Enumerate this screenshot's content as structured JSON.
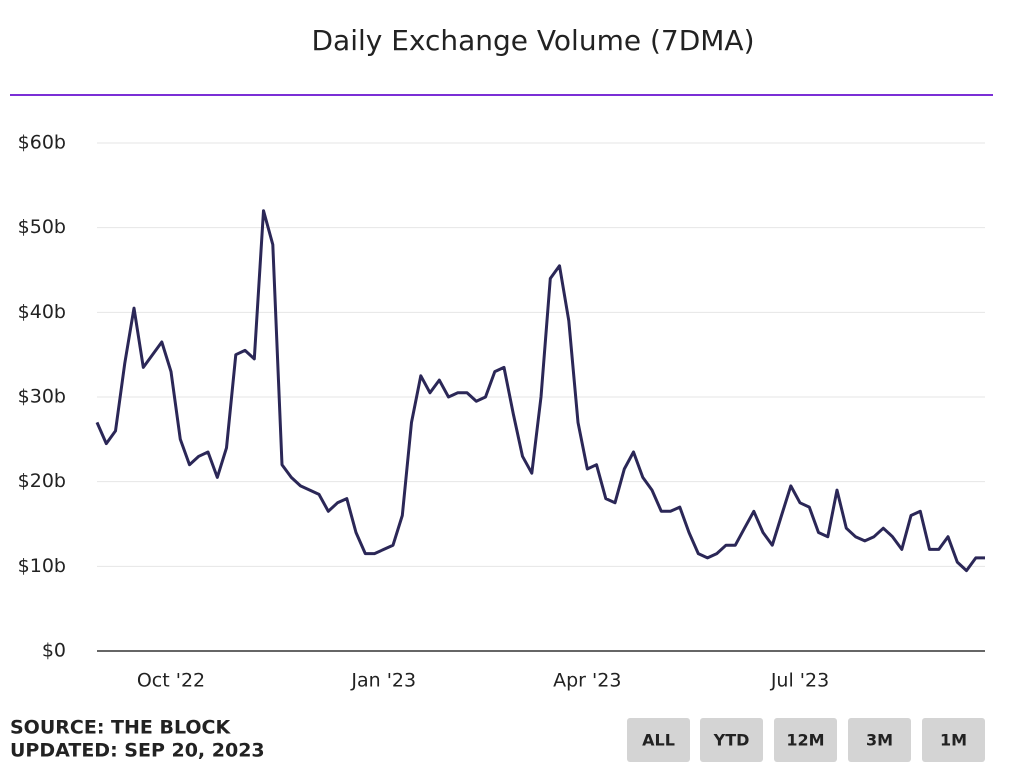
{
  "chart_data": {
    "type": "line",
    "title": "Daily Exchange Volume (7DMA)",
    "source": "SOURCE: THE BLOCK",
    "updated": "UPDATED: SEP 20, 2023",
    "buttons": [
      "ALL",
      "YTD",
      "12M",
      "3M",
      "1M"
    ],
    "categories": [
      null,
      null,
      null,
      null,
      null,
      null,
      null,
      null,
      "Oct '22",
      null,
      null,
      null,
      null,
      null,
      null,
      null,
      null,
      null,
      null,
      null,
      null,
      null,
      null,
      null,
      null,
      null,
      null,
      null,
      null,
      null,
      null,
      "Jan '23",
      null,
      null,
      null,
      null,
      null,
      null,
      null,
      null,
      null,
      null,
      null,
      null,
      null,
      null,
      null,
      null,
      null,
      null,
      null,
      null,
      null,
      "Apr '23",
      null,
      null,
      null,
      null,
      null,
      null,
      null,
      null,
      null,
      null,
      null,
      null,
      null,
      null,
      null,
      null,
      null,
      null,
      null,
      null,
      null,
      null,
      "Jul '23",
      null,
      null,
      null,
      null,
      null,
      null,
      null,
      null,
      null,
      null,
      null,
      null,
      null,
      null,
      null,
      null,
      null,
      null,
      null,
      null
    ],
    "series": [
      {
        "name": "Daily Exchange Volume",
        "color": "#2b2757",
        "values": [
          27,
          24.5,
          26,
          34,
          40.5,
          33.5,
          35,
          36.5,
          33,
          25,
          22,
          23,
          23.5,
          20.5,
          24,
          35,
          35.5,
          34.5,
          52,
          48,
          22,
          20.5,
          19.5,
          19,
          18.5,
          16.5,
          17.5,
          18,
          14,
          11.5,
          11.5,
          12,
          12.5,
          16,
          27,
          32.5,
          30.5,
          32,
          30,
          30.5,
          30.5,
          29.5,
          30,
          33,
          33.5,
          28,
          23,
          21,
          30,
          44,
          45.5,
          39,
          27,
          21.5,
          22,
          18,
          17.5,
          21.5,
          23.5,
          20.5,
          19,
          16.5,
          16.5,
          17,
          14,
          11.5,
          11,
          11.5,
          12.5,
          12.5,
          14.5,
          16.5,
          14,
          12.5,
          16,
          19.5,
          17.5,
          17,
          14,
          13.5,
          19,
          14.5,
          13.5,
          13,
          13.5,
          14.5,
          13.5,
          12,
          16,
          16.5,
          12,
          12,
          13.5,
          10.5,
          9.5,
          11,
          11
        ]
      }
    ],
    "ylim": [
      0,
      60
    ],
    "yticks": [
      {
        "value": 0,
        "label": "$0"
      },
      {
        "value": 10,
        "label": "$10b"
      },
      {
        "value": 20,
        "label": "$20b"
      },
      {
        "value": 30,
        "label": "$30b"
      },
      {
        "value": 40,
        "label": "$40b"
      },
      {
        "value": 50,
        "label": "$50b"
      },
      {
        "value": 60,
        "label": "$60b"
      }
    ],
    "grid": true
  }
}
